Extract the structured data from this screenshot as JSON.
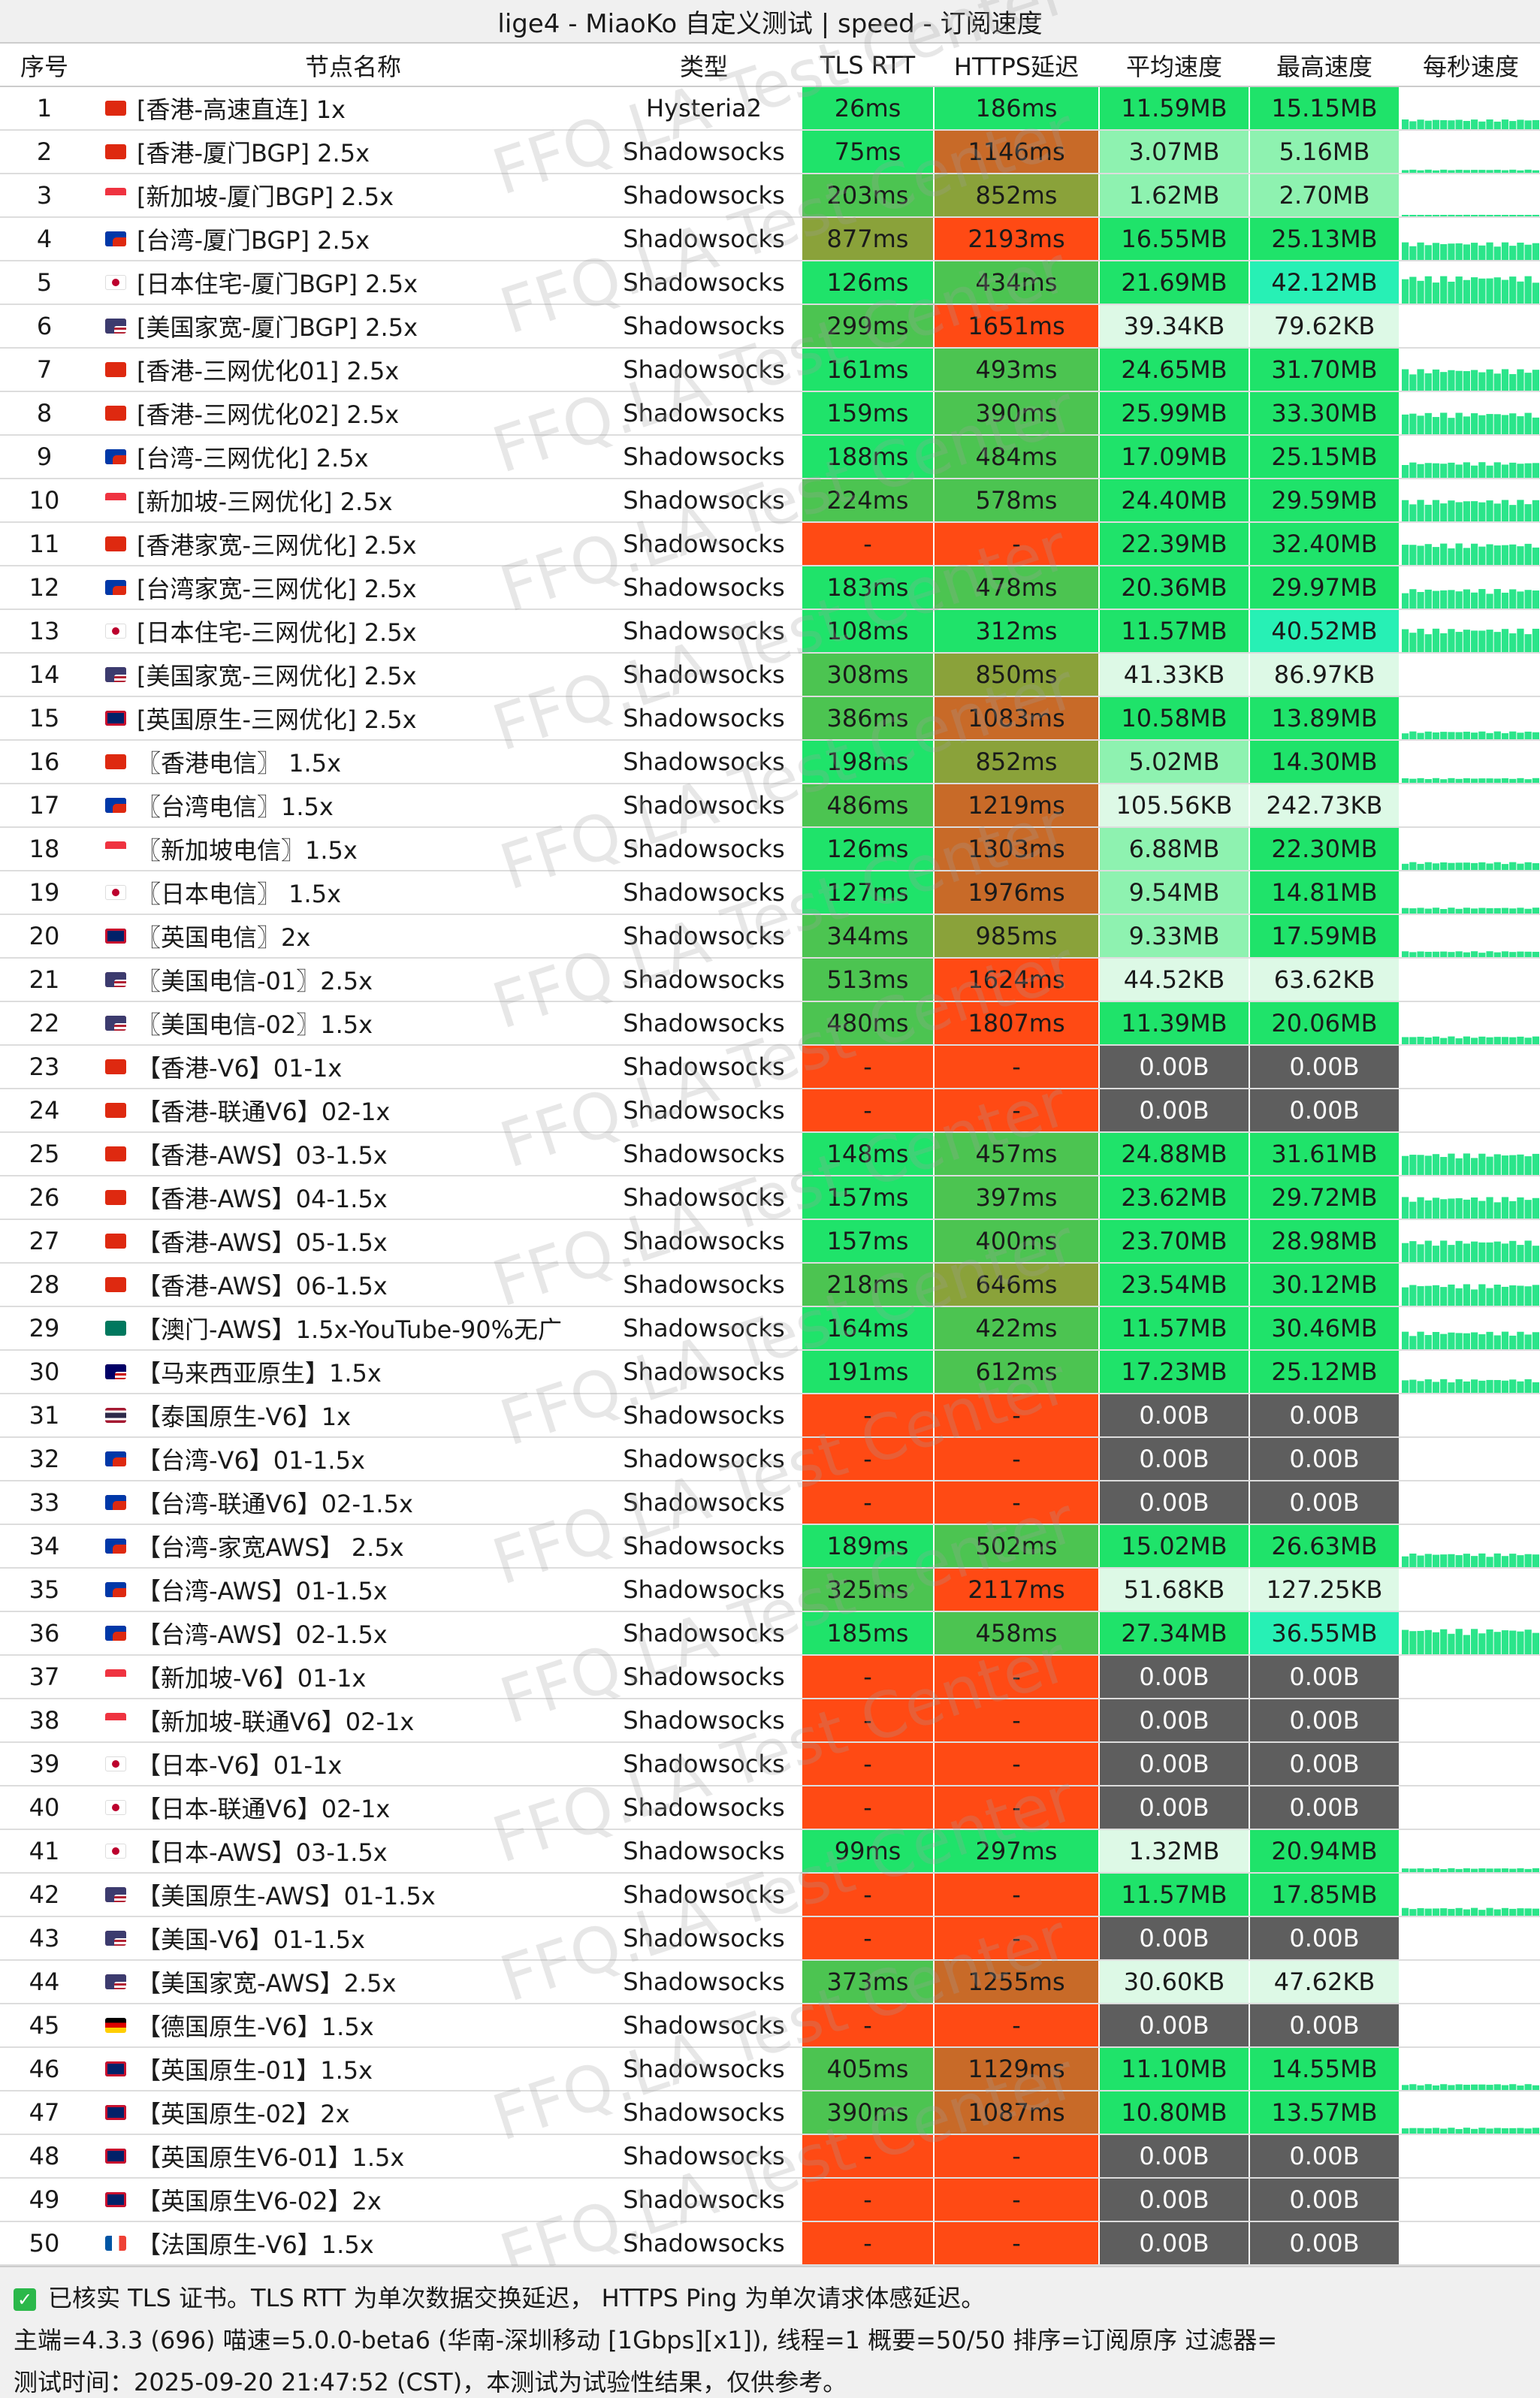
{
  "title": "lige4 - MiaoKo 自定义测试 | speed - 订阅速度",
  "watermark": "FFQ.LA Test Center",
  "headers": {
    "idx": "序号",
    "name": "节点名称",
    "type": "类型",
    "tls": "TLS RTT",
    "https": "HTTPS延迟",
    "avg": "平均速度",
    "max": "最高速度",
    "spark": "每秒速度"
  },
  "colors": {
    "green_bright": "#1fe36a",
    "green_mid": "#4cc451",
    "green_olive": "#8aa23a",
    "orange_brown": "#c86a28",
    "red_orange": "#ff4a14",
    "gray_dark": "#5e5e5e",
    "mint_light": "#ddf9e6",
    "mint_mid": "#8ef2b0",
    "cyan_bright": "#27f0b5",
    "spark": "#2be58a"
  },
  "rows": [
    {
      "idx": "1",
      "flag": "hk",
      "name": "[香港-高速直连] 1x",
      "type": "Hysteria2",
      "tls": "26ms",
      "https": "186ms",
      "avg": "11.59MB",
      "max": "15.15MB",
      "tlsc": "green_bright",
      "httpsc": "green_bright",
      "avgc": "green_bright",
      "maxc": "green_bright",
      "spark": 0.25
    },
    {
      "idx": "2",
      "flag": "hk",
      "name": "[香港-厦门BGP] 2.5x",
      "type": "Shadowsocks",
      "tls": "75ms",
      "https": "1146ms",
      "avg": "3.07MB",
      "max": "5.16MB",
      "tlsc": "green_bright",
      "httpsc": "orange_brown",
      "avgc": "mint_mid",
      "maxc": "mint_mid",
      "spark": 0.08
    },
    {
      "idx": "3",
      "flag": "sg",
      "name": "[新加坡-厦门BGP] 2.5x",
      "type": "Shadowsocks",
      "tls": "203ms",
      "https": "852ms",
      "avg": "1.62MB",
      "max": "2.70MB",
      "tlsc": "green_mid",
      "httpsc": "green_olive",
      "avgc": "mint_mid",
      "maxc": "mint_mid",
      "spark": 0.04
    },
    {
      "idx": "4",
      "flag": "tw",
      "name": "[台湾-厦门BGP] 2.5x",
      "type": "Shadowsocks",
      "tls": "877ms",
      "https": "2193ms",
      "avg": "16.55MB",
      "max": "25.13MB",
      "tlsc": "green_olive",
      "httpsc": "red_orange",
      "avgc": "green_bright",
      "maxc": "green_bright",
      "spark": 0.45
    },
    {
      "idx": "5",
      "flag": "jp",
      "name": "[日本住宅-厦门BGP] 2.5x",
      "type": "Shadowsocks",
      "tls": "126ms",
      "https": "434ms",
      "avg": "21.69MB",
      "max": "42.12MB",
      "tlsc": "green_bright",
      "httpsc": "green_mid",
      "avgc": "green_bright",
      "maxc": "cyan_bright",
      "spark": 0.7
    },
    {
      "idx": "6",
      "flag": "us",
      "name": "[美国家宽-厦门BGP] 2.5x",
      "type": "Shadowsocks",
      "tls": "299ms",
      "https": "1651ms",
      "avg": "39.34KB",
      "max": "79.62KB",
      "tlsc": "green_mid",
      "httpsc": "red_orange",
      "avgc": "mint_light",
      "maxc": "mint_light",
      "spark": 0
    },
    {
      "idx": "7",
      "flag": "hk",
      "name": "[香港-三网优化01] 2.5x",
      "type": "Shadowsocks",
      "tls": "161ms",
      "https": "493ms",
      "avg": "24.65MB",
      "max": "31.70MB",
      "tlsc": "green_bright",
      "httpsc": "green_mid",
      "avgc": "green_bright",
      "maxc": "green_bright",
      "spark": 0.55
    },
    {
      "idx": "8",
      "flag": "hk",
      "name": "[香港-三网优化02] 2.5x",
      "type": "Shadowsocks",
      "tls": "159ms",
      "https": "390ms",
      "avg": "25.99MB",
      "max": "33.30MB",
      "tlsc": "green_bright",
      "httpsc": "green_mid",
      "avgc": "green_bright",
      "maxc": "green_bright",
      "spark": 0.55
    },
    {
      "idx": "9",
      "flag": "tw",
      "name": "[台湾-三网优化] 2.5x",
      "type": "Shadowsocks",
      "tls": "188ms",
      "https": "484ms",
      "avg": "17.09MB",
      "max": "25.15MB",
      "tlsc": "green_bright",
      "httpsc": "green_mid",
      "avgc": "green_bright",
      "maxc": "green_bright",
      "spark": 0.4
    },
    {
      "idx": "10",
      "flag": "sg",
      "name": "[新加坡-三网优化] 2.5x",
      "type": "Shadowsocks",
      "tls": "224ms",
      "https": "578ms",
      "avg": "24.40MB",
      "max": "29.59MB",
      "tlsc": "green_mid",
      "httpsc": "green_mid",
      "avgc": "green_bright",
      "maxc": "green_bright",
      "spark": 0.55
    },
    {
      "idx": "11",
      "flag": "hk",
      "name": "[香港家宽-三网优化] 2.5x",
      "type": "Shadowsocks",
      "tls": "-",
      "https": "-",
      "avg": "22.39MB",
      "max": "32.40MB",
      "tlsc": "red_orange",
      "httpsc": "red_orange",
      "avgc": "green_bright",
      "maxc": "green_bright",
      "spark": 0.55
    },
    {
      "idx": "12",
      "flag": "tw",
      "name": "[台湾家宽-三网优化] 2.5x",
      "type": "Shadowsocks",
      "tls": "183ms",
      "https": "478ms",
      "avg": "20.36MB",
      "max": "29.97MB",
      "tlsc": "green_bright",
      "httpsc": "green_mid",
      "avgc": "green_bright",
      "maxc": "green_bright",
      "spark": 0.5
    },
    {
      "idx": "13",
      "flag": "jp",
      "name": "[日本住宅-三网优化] 2.5x",
      "type": "Shadowsocks",
      "tls": "108ms",
      "https": "312ms",
      "avg": "11.57MB",
      "max": "40.52MB",
      "tlsc": "green_bright",
      "httpsc": "green_bright",
      "avgc": "green_bright",
      "maxc": "cyan_bright",
      "spark": 0.6
    },
    {
      "idx": "14",
      "flag": "us",
      "name": "[美国家宽-三网优化] 2.5x",
      "type": "Shadowsocks",
      "tls": "308ms",
      "https": "850ms",
      "avg": "41.33KB",
      "max": "86.97KB",
      "tlsc": "green_mid",
      "httpsc": "green_olive",
      "avgc": "mint_light",
      "maxc": "mint_light",
      "spark": 0
    },
    {
      "idx": "15",
      "flag": "gb",
      "name": "[英国原生-三网优化] 2.5x",
      "type": "Shadowsocks",
      "tls": "386ms",
      "https": "1083ms",
      "avg": "10.58MB",
      "max": "13.89MB",
      "tlsc": "green_mid",
      "httpsc": "orange_brown",
      "avgc": "green_bright",
      "maxc": "green_bright",
      "spark": 0.2
    },
    {
      "idx": "16",
      "flag": "hk",
      "name": "〖香港电信〗 1.5x",
      "type": "Shadowsocks",
      "tls": "198ms",
      "https": "852ms",
      "avg": "5.02MB",
      "max": "14.30MB",
      "tlsc": "green_bright",
      "httpsc": "green_olive",
      "avgc": "mint_mid",
      "maxc": "green_bright",
      "spark": 0.12
    },
    {
      "idx": "17",
      "flag": "tw",
      "name": "〖台湾电信〗1.5x",
      "type": "Shadowsocks",
      "tls": "486ms",
      "https": "1219ms",
      "avg": "105.56KB",
      "max": "242.73KB",
      "tlsc": "green_mid",
      "httpsc": "orange_brown",
      "avgc": "mint_light",
      "maxc": "mint_light",
      "spark": 0
    },
    {
      "idx": "18",
      "flag": "sg",
      "name": "〖新加坡电信〗1.5x",
      "type": "Shadowsocks",
      "tls": "126ms",
      "https": "1303ms",
      "avg": "6.88MB",
      "max": "22.30MB",
      "tlsc": "green_bright",
      "httpsc": "orange_brown",
      "avgc": "mint_mid",
      "maxc": "green_bright",
      "spark": 0.2
    },
    {
      "idx": "19",
      "flag": "jp",
      "name": "〖日本电信〗 1.5x",
      "type": "Shadowsocks",
      "tls": "127ms",
      "https": "1976ms",
      "avg": "9.54MB",
      "max": "14.81MB",
      "tlsc": "green_bright",
      "httpsc": "orange_brown",
      "avgc": "mint_mid",
      "maxc": "green_bright",
      "spark": 0.15
    },
    {
      "idx": "20",
      "flag": "gb",
      "name": "〖英国电信〗2x",
      "type": "Shadowsocks",
      "tls": "344ms",
      "https": "985ms",
      "avg": "9.33MB",
      "max": "17.59MB",
      "tlsc": "green_mid",
      "httpsc": "green_olive",
      "avgc": "mint_mid",
      "maxc": "green_bright",
      "spark": 0.15
    },
    {
      "idx": "21",
      "flag": "us",
      "name": "〖美国电信-01〗2.5x",
      "type": "Shadowsocks",
      "tls": "513ms",
      "https": "1624ms",
      "avg": "44.52KB",
      "max": "63.62KB",
      "tlsc": "green_mid",
      "httpsc": "red_orange",
      "avgc": "mint_light",
      "maxc": "mint_light",
      "spark": 0
    },
    {
      "idx": "22",
      "flag": "us",
      "name": "〖美国电信-02〗1.5x",
      "type": "Shadowsocks",
      "tls": "480ms",
      "https": "1807ms",
      "avg": "11.39MB",
      "max": "20.06MB",
      "tlsc": "green_mid",
      "httpsc": "red_orange",
      "avgc": "green_bright",
      "maxc": "green_bright",
      "spark": 0.2
    },
    {
      "idx": "23",
      "flag": "hk",
      "name": "【香港-V6】01-1x",
      "type": "Shadowsocks",
      "tls": "-",
      "https": "-",
      "avg": "0.00B",
      "max": "0.00B",
      "tlsc": "red_orange",
      "httpsc": "red_orange",
      "avgc": "gray_dark",
      "maxc": "gray_dark",
      "spark": 0
    },
    {
      "idx": "24",
      "flag": "hk",
      "name": "【香港-联通V6】02-1x",
      "type": "Shadowsocks",
      "tls": "-",
      "https": "-",
      "avg": "0.00B",
      "max": "0.00B",
      "tlsc": "red_orange",
      "httpsc": "red_orange",
      "avgc": "gray_dark",
      "maxc": "gray_dark",
      "spark": 0
    },
    {
      "idx": "25",
      "flag": "hk",
      "name": "【香港-AWS】03-1.5x",
      "type": "Shadowsocks",
      "tls": "148ms",
      "https": "457ms",
      "avg": "24.88MB",
      "max": "31.61MB",
      "tlsc": "green_bright",
      "httpsc": "green_mid",
      "avgc": "green_bright",
      "maxc": "green_bright",
      "spark": 0.55
    },
    {
      "idx": "26",
      "flag": "hk",
      "name": "【香港-AWS】04-1.5x",
      "type": "Shadowsocks",
      "tls": "157ms",
      "https": "397ms",
      "avg": "23.62MB",
      "max": "29.72MB",
      "tlsc": "green_bright",
      "httpsc": "green_mid",
      "avgc": "green_bright",
      "maxc": "green_bright",
      "spark": 0.55
    },
    {
      "idx": "27",
      "flag": "hk",
      "name": "【香港-AWS】05-1.5x",
      "type": "Shadowsocks",
      "tls": "157ms",
      "https": "400ms",
      "avg": "23.70MB",
      "max": "28.98MB",
      "tlsc": "green_bright",
      "httpsc": "green_mid",
      "avgc": "green_bright",
      "maxc": "green_bright",
      "spark": 0.55
    },
    {
      "idx": "28",
      "flag": "hk",
      "name": "【香港-AWS】06-1.5x",
      "type": "Shadowsocks",
      "tls": "218ms",
      "https": "646ms",
      "avg": "23.54MB",
      "max": "30.12MB",
      "tlsc": "green_mid",
      "httpsc": "green_olive",
      "avgc": "green_bright",
      "maxc": "green_bright",
      "spark": 0.55
    },
    {
      "idx": "29",
      "flag": "mo",
      "name": "【澳门-AWS】1.5x-YouTube-90%无广",
      "type": "Shadowsocks",
      "tls": "164ms",
      "https": "422ms",
      "avg": "11.57MB",
      "max": "30.46MB",
      "tlsc": "green_bright",
      "httpsc": "green_mid",
      "avgc": "green_bright",
      "maxc": "green_bright",
      "spark": 0.45
    },
    {
      "idx": "30",
      "flag": "my",
      "name": "【马来西亚原生】1.5x",
      "type": "Shadowsocks",
      "tls": "191ms",
      "https": "612ms",
      "avg": "17.23MB",
      "max": "25.12MB",
      "tlsc": "green_bright",
      "httpsc": "green_mid",
      "avgc": "green_bright",
      "maxc": "green_bright",
      "spark": 0.35
    },
    {
      "idx": "31",
      "flag": "th",
      "name": "【泰国原生-V6】1x",
      "type": "Shadowsocks",
      "tls": "-",
      "https": "-",
      "avg": "0.00B",
      "max": "0.00B",
      "tlsc": "red_orange",
      "httpsc": "red_orange",
      "avgc": "gray_dark",
      "maxc": "gray_dark",
      "spark": 0
    },
    {
      "idx": "32",
      "flag": "tw",
      "name": "【台湾-V6】01-1.5x",
      "type": "Shadowsocks",
      "tls": "-",
      "https": "-",
      "avg": "0.00B",
      "max": "0.00B",
      "tlsc": "red_orange",
      "httpsc": "red_orange",
      "avgc": "gray_dark",
      "maxc": "gray_dark",
      "spark": 0
    },
    {
      "idx": "33",
      "flag": "tw",
      "name": "【台湾-联通V6】02-1.5x",
      "type": "Shadowsocks",
      "tls": "-",
      "https": "-",
      "avg": "0.00B",
      "max": "0.00B",
      "tlsc": "red_orange",
      "httpsc": "red_orange",
      "avgc": "gray_dark",
      "maxc": "gray_dark",
      "spark": 0
    },
    {
      "idx": "34",
      "flag": "tw",
      "name": "【台湾-家宽AWS】 2.5x",
      "type": "Shadowsocks",
      "tls": "189ms",
      "https": "502ms",
      "avg": "15.02MB",
      "max": "26.63MB",
      "tlsc": "green_bright",
      "httpsc": "green_mid",
      "avgc": "green_bright",
      "maxc": "green_bright",
      "spark": 0.35
    },
    {
      "idx": "35",
      "flag": "tw",
      "name": "【台湾-AWS】01-1.5x",
      "type": "Shadowsocks",
      "tls": "325ms",
      "https": "2117ms",
      "avg": "51.68KB",
      "max": "127.25KB",
      "tlsc": "green_mid",
      "httpsc": "red_orange",
      "avgc": "mint_light",
      "maxc": "mint_light",
      "spark": 0
    },
    {
      "idx": "36",
      "flag": "tw",
      "name": "【台湾-AWS】02-1.5x",
      "type": "Shadowsocks",
      "tls": "185ms",
      "https": "458ms",
      "avg": "27.34MB",
      "max": "36.55MB",
      "tlsc": "green_bright",
      "httpsc": "green_mid",
      "avgc": "green_bright",
      "maxc": "cyan_bright",
      "spark": 0.65
    },
    {
      "idx": "37",
      "flag": "sg",
      "name": "【新加坡-V6】01-1x",
      "type": "Shadowsocks",
      "tls": "-",
      "https": "-",
      "avg": "0.00B",
      "max": "0.00B",
      "tlsc": "red_orange",
      "httpsc": "red_orange",
      "avgc": "gray_dark",
      "maxc": "gray_dark",
      "spark": 0
    },
    {
      "idx": "38",
      "flag": "sg",
      "name": "【新加坡-联通V6】02-1x",
      "type": "Shadowsocks",
      "tls": "-",
      "https": "-",
      "avg": "0.00B",
      "max": "0.00B",
      "tlsc": "red_orange",
      "httpsc": "red_orange",
      "avgc": "gray_dark",
      "maxc": "gray_dark",
      "spark": 0
    },
    {
      "idx": "39",
      "flag": "jp",
      "name": "【日本-V6】01-1x",
      "type": "Shadowsocks",
      "tls": "-",
      "https": "-",
      "avg": "0.00B",
      "max": "0.00B",
      "tlsc": "red_orange",
      "httpsc": "red_orange",
      "avgc": "gray_dark",
      "maxc": "gray_dark",
      "spark": 0
    },
    {
      "idx": "40",
      "flag": "jp",
      "name": "【日本-联通V6】02-1x",
      "type": "Shadowsocks",
      "tls": "-",
      "https": "-",
      "avg": "0.00B",
      "max": "0.00B",
      "tlsc": "red_orange",
      "httpsc": "red_orange",
      "avgc": "gray_dark",
      "maxc": "gray_dark",
      "spark": 0
    },
    {
      "idx": "41",
      "flag": "jp",
      "name": "【日本-AWS】03-1.5x",
      "type": "Shadowsocks",
      "tls": "99ms",
      "https": "297ms",
      "avg": "1.32MB",
      "max": "20.94MB",
      "tlsc": "green_bright",
      "httpsc": "green_bright",
      "avgc": "mint_light",
      "maxc": "green_bright",
      "spark": 0.1
    },
    {
      "idx": "42",
      "flag": "us",
      "name": "【美国原生-AWS】01-1.5x",
      "type": "Shadowsocks",
      "tls": "-",
      "https": "-",
      "avg": "11.57MB",
      "max": "17.85MB",
      "tlsc": "red_orange",
      "httpsc": "red_orange",
      "avgc": "green_bright",
      "maxc": "green_bright",
      "spark": 0.2
    },
    {
      "idx": "43",
      "flag": "us",
      "name": "【美国-V6】01-1.5x",
      "type": "Shadowsocks",
      "tls": "-",
      "https": "-",
      "avg": "0.00B",
      "max": "0.00B",
      "tlsc": "red_orange",
      "httpsc": "red_orange",
      "avgc": "gray_dark",
      "maxc": "gray_dark",
      "spark": 0
    },
    {
      "idx": "44",
      "flag": "us",
      "name": "【美国家宽-AWS】2.5x",
      "type": "Shadowsocks",
      "tls": "373ms",
      "https": "1255ms",
      "avg": "30.60KB",
      "max": "47.62KB",
      "tlsc": "green_mid",
      "httpsc": "orange_brown",
      "avgc": "mint_light",
      "maxc": "mint_light",
      "spark": 0
    },
    {
      "idx": "45",
      "flag": "de",
      "name": "【德国原生-V6】1.5x",
      "type": "Shadowsocks",
      "tls": "-",
      "https": "-",
      "avg": "0.00B",
      "max": "0.00B",
      "tlsc": "red_orange",
      "httpsc": "red_orange",
      "avgc": "gray_dark",
      "maxc": "gray_dark",
      "spark": 0
    },
    {
      "idx": "46",
      "flag": "gb",
      "name": "【英国原生-01】1.5x",
      "type": "Shadowsocks",
      "tls": "405ms",
      "https": "1129ms",
      "avg": "11.10MB",
      "max": "14.55MB",
      "tlsc": "green_mid",
      "httpsc": "orange_brown",
      "avgc": "green_bright",
      "maxc": "green_bright",
      "spark": 0.15
    },
    {
      "idx": "47",
      "flag": "gb",
      "name": "【英国原生-02】2x",
      "type": "Shadowsocks",
      "tls": "390ms",
      "https": "1087ms",
      "avg": "10.80MB",
      "max": "13.57MB",
      "tlsc": "green_mid",
      "httpsc": "orange_brown",
      "avgc": "green_bright",
      "maxc": "green_bright",
      "spark": 0.15
    },
    {
      "idx": "48",
      "flag": "gb",
      "name": "【英国原生V6-01】1.5x",
      "type": "Shadowsocks",
      "tls": "-",
      "https": "-",
      "avg": "0.00B",
      "max": "0.00B",
      "tlsc": "red_orange",
      "httpsc": "red_orange",
      "avgc": "gray_dark",
      "maxc": "gray_dark",
      "spark": 0
    },
    {
      "idx": "49",
      "flag": "gb",
      "name": "【英国原生V6-02】2x",
      "type": "Shadowsocks",
      "tls": "-",
      "https": "-",
      "avg": "0.00B",
      "max": "0.00B",
      "tlsc": "red_orange",
      "httpsc": "red_orange",
      "avgc": "gray_dark",
      "maxc": "gray_dark",
      "spark": 0
    },
    {
      "idx": "50",
      "flag": "fr",
      "name": "【法国原生-V6】1.5x",
      "type": "Shadowsocks",
      "tls": "-",
      "https": "-",
      "avg": "0.00B",
      "max": "0.00B",
      "tlsc": "red_orange",
      "httpsc": "red_orange",
      "avgc": "gray_dark",
      "maxc": "gray_dark",
      "spark": 0
    }
  ],
  "footer": {
    "line1": "已核实 TLS 证书。TLS RTT 为单次数据交换延迟， HTTPS Ping 为单次请求体感延迟。",
    "line2": "主端=4.3.3 (696) 喵速=5.0.0-beta6 (华南-深圳移动 [1Gbps][x1]), 线程=1 概要=50/50 排序=订阅原序 过滤器=",
    "line3": "测试时间：2025-09-20 21:47:52 (CST)，本测试为试验性结果，仅供参考。"
  }
}
